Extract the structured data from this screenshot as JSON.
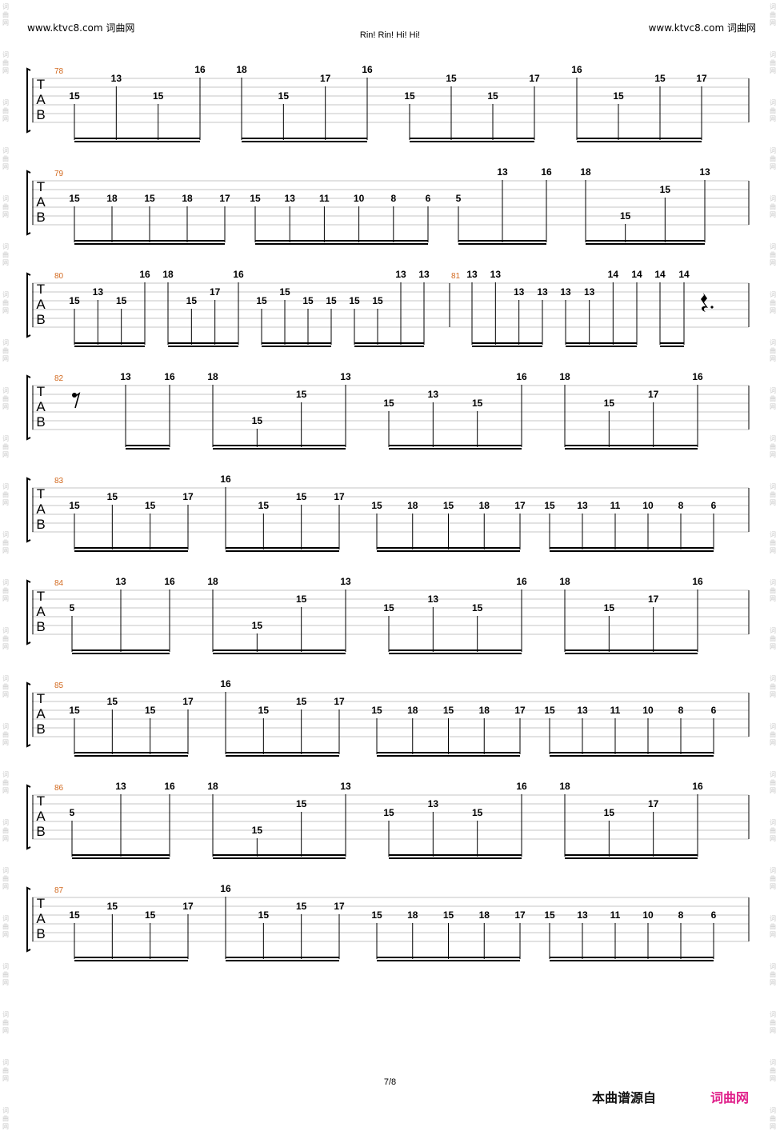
{
  "header": {
    "left": "www.ktvc8.com 词曲网",
    "right": "www.ktvc8.com 词曲网",
    "title": "Rin! Rin! Hi! Hi!"
  },
  "footer": {
    "page": "7/8",
    "source": "本曲谱源自",
    "brand": "词曲网"
  },
  "watermark": "词曲网",
  "tab_clef": [
    "T",
    "A",
    "B"
  ],
  "systems": [
    {
      "measure": "78",
      "groups": [
        [
          [
            2,
            "15"
          ],
          [
            0,
            "13"
          ],
          [
            2,
            "15"
          ],
          [
            -1,
            "16"
          ]
        ],
        [
          [
            -1,
            "18"
          ],
          [
            2,
            "15"
          ],
          [
            0,
            "17"
          ],
          [
            -1,
            "16"
          ]
        ],
        [
          [
            2,
            "15"
          ],
          [
            0,
            "15"
          ],
          [
            2,
            "15"
          ],
          [
            0,
            "17"
          ]
        ],
        [
          [
            -1,
            "16"
          ],
          [
            2,
            "15"
          ],
          [
            0,
            "15"
          ],
          [
            0,
            "17"
          ]
        ]
      ]
    },
    {
      "measure": "79",
      "groups": [
        [
          [
            2,
            "15"
          ],
          [
            2,
            "18"
          ],
          [
            2,
            "15"
          ],
          [
            2,
            "18"
          ],
          [
            2,
            "17"
          ]
        ],
        [
          [
            2,
            "15"
          ],
          [
            2,
            "13"
          ],
          [
            2,
            "11"
          ],
          [
            2,
            "10"
          ],
          [
            2,
            "8"
          ],
          [
            2,
            "6"
          ]
        ],
        [
          [
            2,
            "5"
          ],
          [
            -1,
            "13"
          ],
          [
            -1,
            "16"
          ]
        ],
        [
          [
            -1,
            "18"
          ],
          [
            4,
            "15"
          ],
          [
            1,
            "15"
          ],
          [
            -1,
            "13"
          ]
        ]
      ]
    },
    {
      "measure": "80",
      "measure2": "81",
      "groups": [
        [
          [
            2,
            "15"
          ],
          [
            1,
            "13"
          ],
          [
            2,
            "15"
          ],
          [
            -1,
            "16"
          ]
        ],
        [
          [
            -1,
            "18"
          ],
          [
            2,
            "15"
          ],
          [
            1,
            "17"
          ],
          [
            -1,
            "16"
          ]
        ],
        [
          [
            2,
            "15"
          ],
          [
            1,
            "15"
          ],
          [
            2,
            "15"
          ],
          [
            2,
            "15"
          ]
        ],
        [
          [
            2,
            "15"
          ],
          [
            2,
            "15"
          ],
          [
            -1,
            "13"
          ],
          [
            -1,
            "13"
          ]
        ],
        [
          [
            -1,
            "13"
          ],
          [
            -1,
            "13"
          ],
          [
            1,
            "13"
          ],
          [
            1,
            "13"
          ]
        ],
        [
          [
            1,
            "13"
          ],
          [
            1,
            "13"
          ],
          [
            -1,
            "14"
          ],
          [
            -1,
            "14"
          ]
        ],
        [
          [
            -1,
            "14"
          ],
          [
            -1,
            "14"
          ]
        ]
      ]
    },
    {
      "measure": "82",
      "groups": [
        [
          [
            -1,
            "13"
          ],
          [
            -1,
            "16"
          ]
        ],
        [
          [
            -1,
            "18"
          ],
          [
            4,
            "15"
          ],
          [
            1,
            "15"
          ],
          [
            -1,
            "13"
          ]
        ],
        [
          [
            2,
            "15"
          ],
          [
            1,
            "13"
          ],
          [
            2,
            "15"
          ],
          [
            -1,
            "16"
          ]
        ],
        [
          [
            -1,
            "18"
          ],
          [
            2,
            "15"
          ],
          [
            1,
            "17"
          ],
          [
            -1,
            "16"
          ]
        ]
      ]
    },
    {
      "measure": "83",
      "groups": [
        [
          [
            2,
            "15"
          ],
          [
            1,
            "15"
          ],
          [
            2,
            "15"
          ],
          [
            1,
            "17"
          ]
        ],
        [
          [
            -1,
            "16"
          ],
          [
            2,
            "15"
          ],
          [
            1,
            "15"
          ],
          [
            1,
            "17"
          ]
        ],
        [
          [
            2,
            "15"
          ],
          [
            2,
            "18"
          ],
          [
            2,
            "15"
          ],
          [
            2,
            "18"
          ],
          [
            2,
            "17"
          ]
        ],
        [
          [
            2,
            "15"
          ],
          [
            2,
            "13"
          ],
          [
            2,
            "11"
          ],
          [
            2,
            "10"
          ],
          [
            2,
            "8"
          ],
          [
            2,
            "6"
          ]
        ]
      ]
    },
    {
      "measure": "84",
      "groups": [
        [
          [
            2,
            "5"
          ],
          [
            -1,
            "13"
          ],
          [
            -1,
            "16"
          ]
        ],
        [
          [
            -1,
            "18"
          ],
          [
            4,
            "15"
          ],
          [
            1,
            "15"
          ],
          [
            -1,
            "13"
          ]
        ],
        [
          [
            2,
            "15"
          ],
          [
            1,
            "13"
          ],
          [
            2,
            "15"
          ],
          [
            -1,
            "16"
          ]
        ],
        [
          [
            -1,
            "18"
          ],
          [
            2,
            "15"
          ],
          [
            1,
            "17"
          ],
          [
            -1,
            "16"
          ]
        ]
      ]
    },
    {
      "measure": "85",
      "groups": [
        [
          [
            2,
            "15"
          ],
          [
            1,
            "15"
          ],
          [
            2,
            "15"
          ],
          [
            1,
            "17"
          ]
        ],
        [
          [
            -1,
            "16"
          ],
          [
            2,
            "15"
          ],
          [
            1,
            "15"
          ],
          [
            1,
            "17"
          ]
        ],
        [
          [
            2,
            "15"
          ],
          [
            2,
            "18"
          ],
          [
            2,
            "15"
          ],
          [
            2,
            "18"
          ],
          [
            2,
            "17"
          ]
        ],
        [
          [
            2,
            "15"
          ],
          [
            2,
            "13"
          ],
          [
            2,
            "11"
          ],
          [
            2,
            "10"
          ],
          [
            2,
            "8"
          ],
          [
            2,
            "6"
          ]
        ]
      ]
    },
    {
      "measure": "86",
      "groups": [
        [
          [
            2,
            "5"
          ],
          [
            -1,
            "13"
          ],
          [
            -1,
            "16"
          ]
        ],
        [
          [
            -1,
            "18"
          ],
          [
            4,
            "15"
          ],
          [
            1,
            "15"
          ],
          [
            -1,
            "13"
          ]
        ],
        [
          [
            2,
            "15"
          ],
          [
            1,
            "13"
          ],
          [
            2,
            "15"
          ],
          [
            -1,
            "16"
          ]
        ],
        [
          [
            -1,
            "18"
          ],
          [
            2,
            "15"
          ],
          [
            1,
            "17"
          ],
          [
            -1,
            "16"
          ]
        ]
      ]
    },
    {
      "measure": "87",
      "groups": [
        [
          [
            2,
            "15"
          ],
          [
            1,
            "15"
          ],
          [
            2,
            "15"
          ],
          [
            1,
            "17"
          ]
        ],
        [
          [
            -1,
            "16"
          ],
          [
            2,
            "15"
          ],
          [
            1,
            "15"
          ],
          [
            1,
            "17"
          ]
        ],
        [
          [
            2,
            "15"
          ],
          [
            2,
            "18"
          ],
          [
            2,
            "15"
          ],
          [
            2,
            "18"
          ],
          [
            2,
            "17"
          ]
        ],
        [
          [
            2,
            "15"
          ],
          [
            2,
            "13"
          ],
          [
            2,
            "11"
          ],
          [
            2,
            "10"
          ],
          [
            2,
            "8"
          ],
          [
            2,
            "6"
          ]
        ]
      ]
    }
  ]
}
